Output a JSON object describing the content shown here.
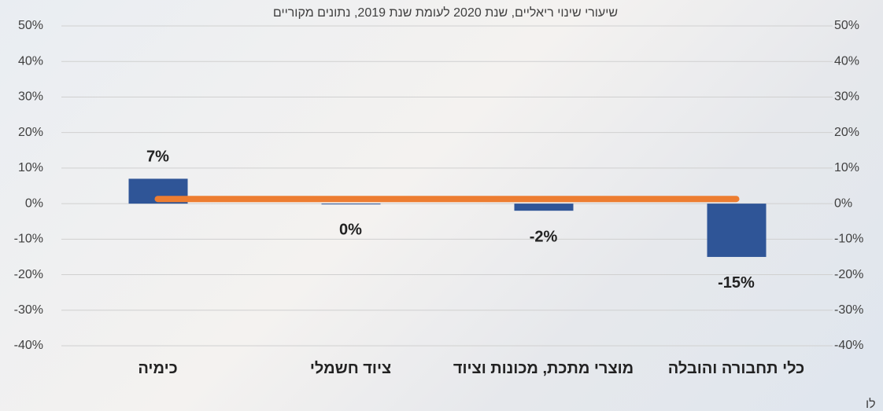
{
  "chart_data": {
    "type": "bar",
    "title": "שיעורי שינוי ריאליים,  שנת 2020 לעומת שנת 2019, נתונים מקוריים",
    "note": "לו",
    "categories": [
      "כימיה",
      "ציוד חשמלי",
      "מוצרי מתכת, מכונות וציוד",
      "כלי תחבורה והובלה"
    ],
    "series": [
      {
        "type": "bar",
        "color": "#2f5597",
        "values": [
          7,
          0,
          -2,
          -15
        ],
        "value_labels": [
          "7%",
          "0%",
          "-2%",
          "-15%"
        ]
      },
      {
        "type": "line",
        "color": "#ed7d31",
        "values": [
          1.3,
          1.3,
          1.3,
          1.3
        ]
      }
    ],
    "ylim": [
      -40,
      50
    ],
    "yticks": [
      {
        "value": -40,
        "label": "-40%"
      },
      {
        "value": -30,
        "label": "-30%"
      },
      {
        "value": -20,
        "label": "-20%"
      },
      {
        "value": -10,
        "label": "-10%"
      },
      {
        "value": 0,
        "label": "0%"
      },
      {
        "value": 10,
        "label": "10%"
      },
      {
        "value": 20,
        "label": "20%"
      },
      {
        "value": 30,
        "label": "30%"
      },
      {
        "value": 40,
        "label": "40%"
      },
      {
        "value": 50,
        "label": "50%"
      }
    ],
    "y2lim": [
      -40,
      50
    ],
    "y2ticks": [
      {
        "value": -40,
        "label": "-40%"
      },
      {
        "value": -30,
        "label": "-30%"
      },
      {
        "value": -20,
        "label": "-20%"
      },
      {
        "value": -10,
        "label": "-10%"
      },
      {
        "value": 0,
        "label": "0%"
      },
      {
        "value": 10,
        "label": "10%"
      },
      {
        "value": 20,
        "label": "20%"
      },
      {
        "value": 30,
        "label": "30%"
      },
      {
        "value": 40,
        "label": "40%"
      },
      {
        "value": 50,
        "label": "50%"
      }
    ],
    "grid": true
  }
}
